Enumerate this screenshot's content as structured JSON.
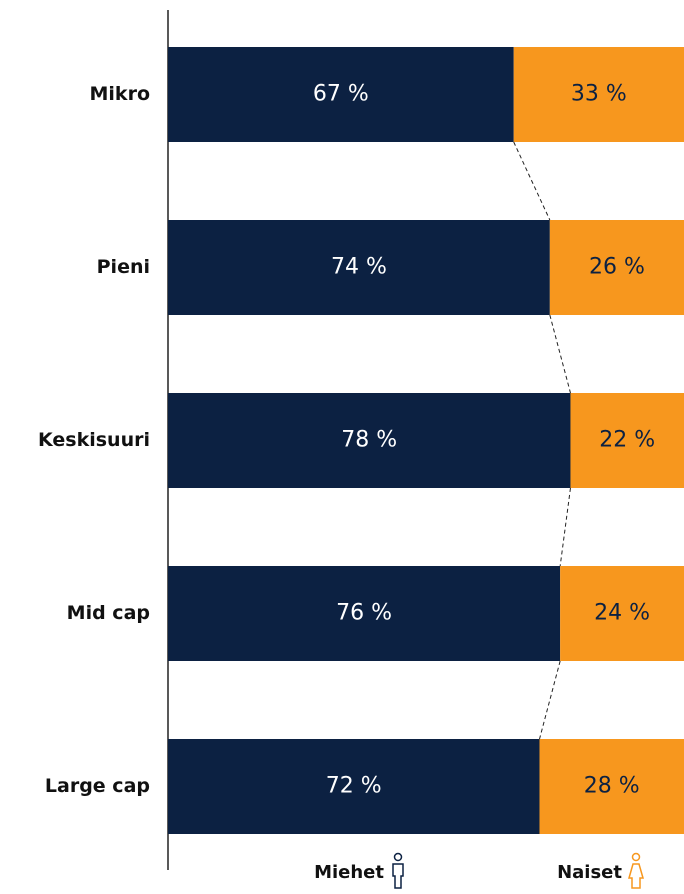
{
  "chart_data": {
    "type": "stacked_barh",
    "categories": [
      "Mikro",
      "Pieni",
      "Keskisuuri",
      "Mid cap",
      "Large cap"
    ],
    "series": [
      {
        "name": "Miehet",
        "color": "#0c2142",
        "values": [
          67,
          74,
          78,
          76,
          72
        ],
        "value_labels": [
          "67 %",
          "74 %",
          "78 %",
          "76 %",
          "72 %"
        ]
      },
      {
        "name": "Naiset",
        "color": "#f7971e",
        "values": [
          33,
          26,
          22,
          24,
          28
        ],
        "value_labels": [
          "33 %",
          "26 %",
          "22 %",
          "24 %",
          "28 %"
        ]
      }
    ],
    "xlim": [
      0,
      100
    ]
  }
}
